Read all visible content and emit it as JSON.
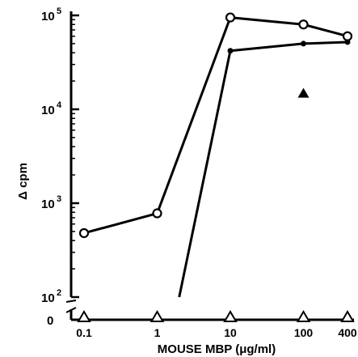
{
  "chart_data": {
    "type": "line",
    "xscale": "log",
    "yscale": "log",
    "xlabel": "MOUSE MBP (μg/ml)",
    "ylabel": "Δ cpm",
    "xticks": [
      {
        "value": 0.1,
        "label": "0.1"
      },
      {
        "value": 1,
        "label": "1"
      },
      {
        "value": 10,
        "label": "10"
      },
      {
        "value": 100,
        "label": "100"
      },
      {
        "value": 400,
        "label": "400"
      }
    ],
    "yticks": [
      {
        "value": 100,
        "base": "10",
        "exp": "2"
      },
      {
        "value": 1000,
        "base": "10",
        "exp": "3"
      },
      {
        "value": 10000,
        "base": "10",
        "exp": "4"
      },
      {
        "value": 100000,
        "base": "10",
        "exp": "5"
      }
    ],
    "y_zero_label": "0",
    "xlim": [
      0.1,
      400
    ],
    "ylim": [
      100,
      100000
    ],
    "series": [
      {
        "marker": "open-circle",
        "x": [
          0.1,
          1,
          10,
          100,
          400
        ],
        "y": [
          480,
          780,
          95000,
          80000,
          60000
        ]
      },
      {
        "marker": "filled-circle",
        "x": [
          2,
          10,
          100,
          400
        ],
        "y": [
          60,
          42000,
          50000,
          52000
        ]
      },
      {
        "marker": "filled-triangle",
        "x": [
          100
        ],
        "y": [
          15000
        ]
      },
      {
        "marker": "open-triangle",
        "baseline": true,
        "x": [
          0.1,
          1,
          10,
          100,
          400
        ],
        "y": [
          0,
          0,
          0,
          0,
          0
        ]
      }
    ]
  }
}
